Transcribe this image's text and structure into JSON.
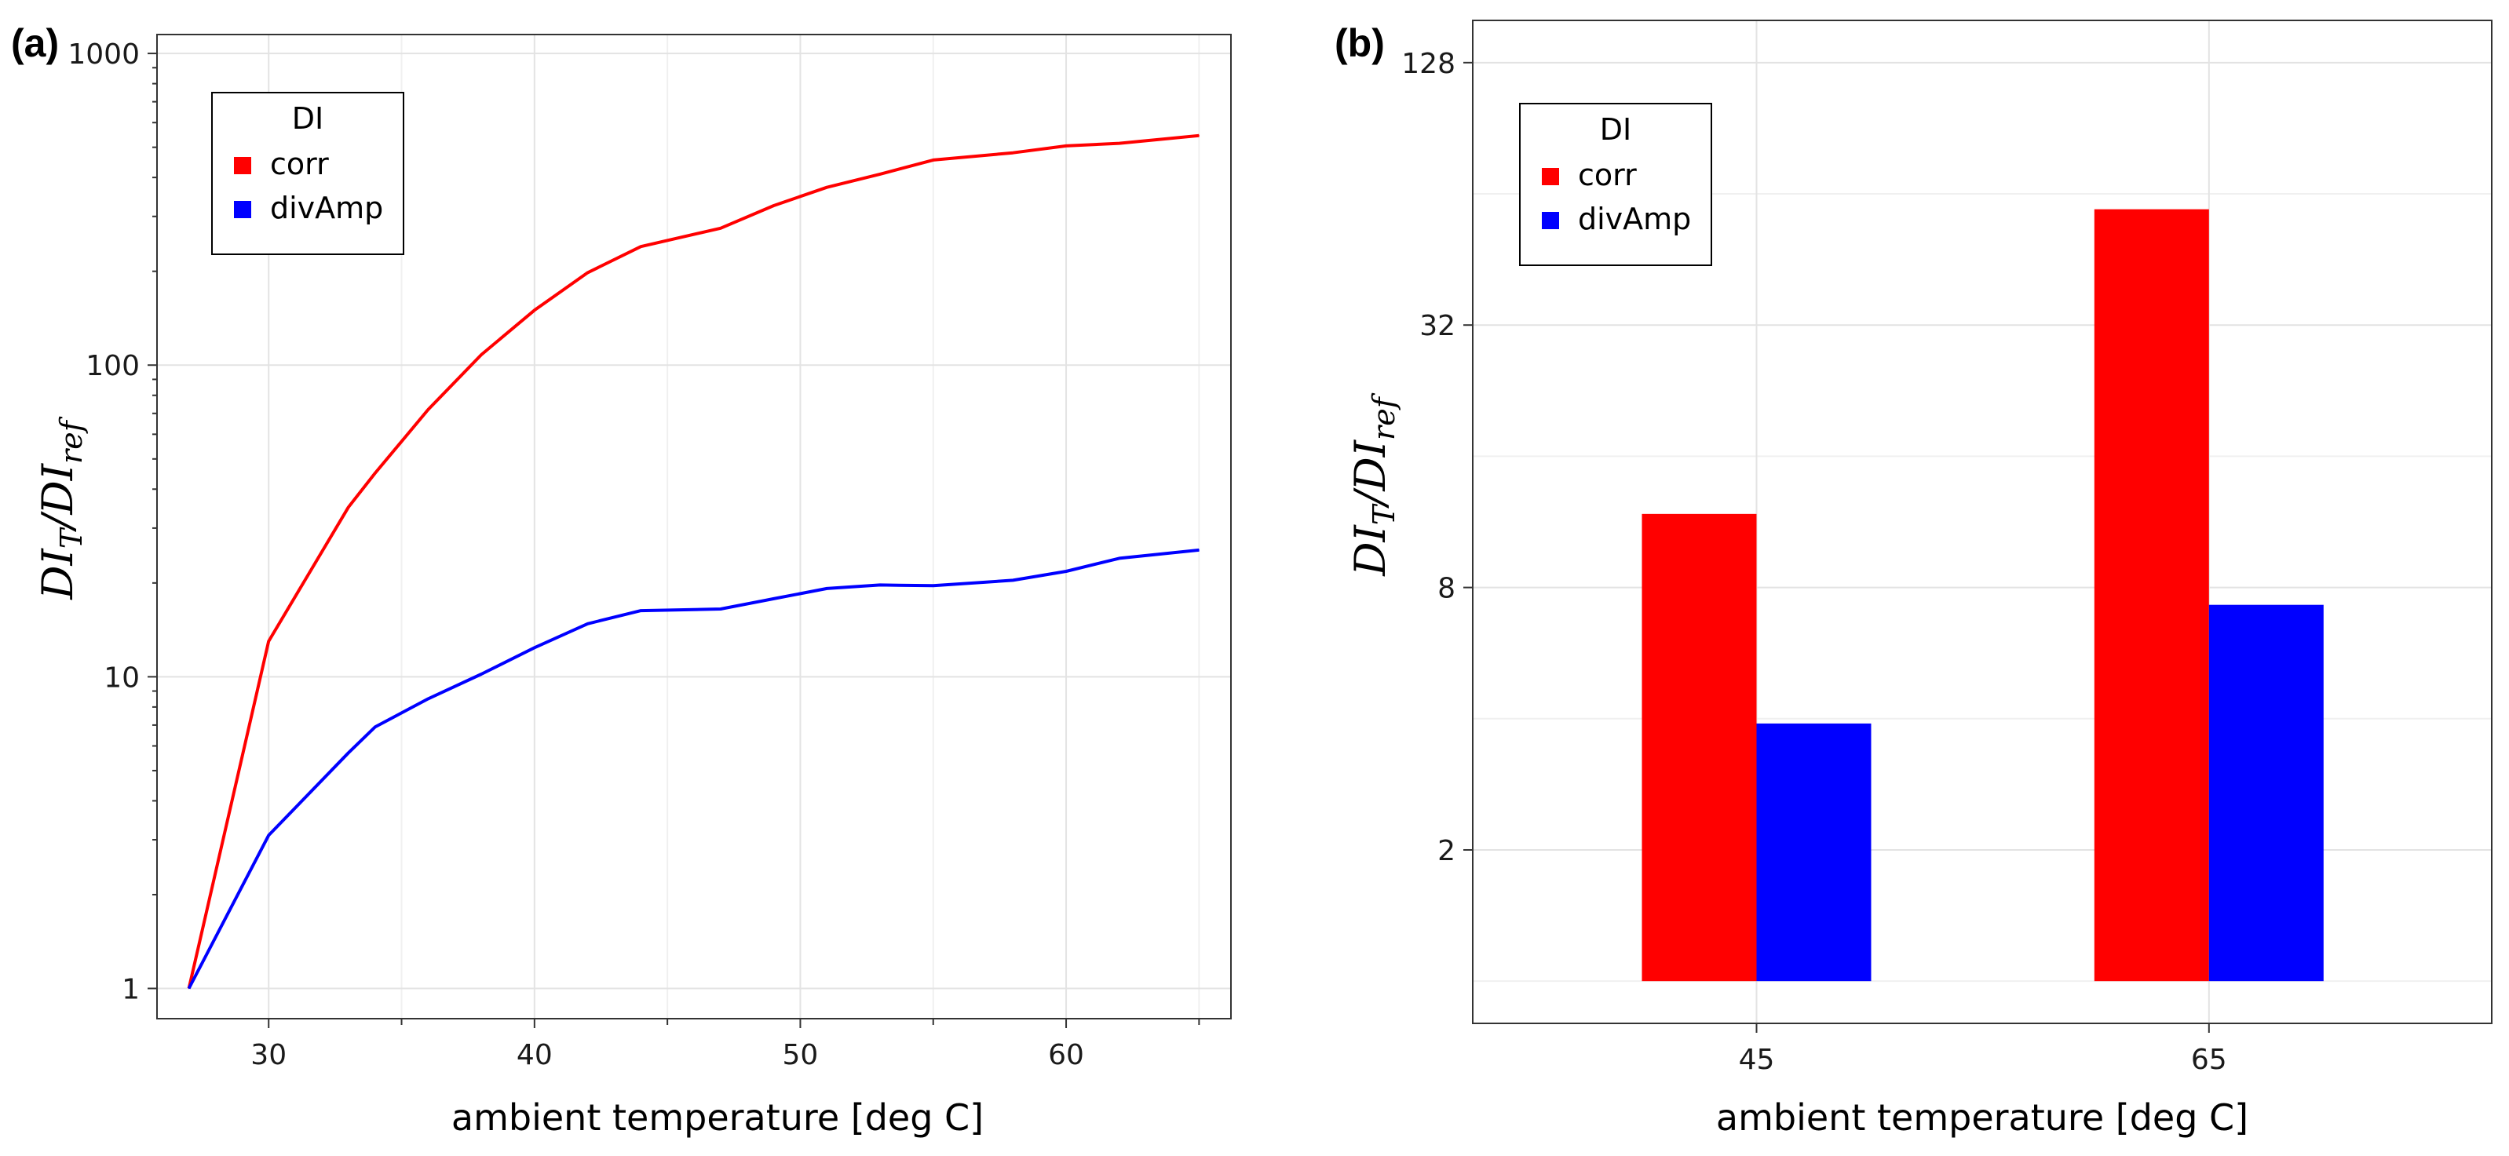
{
  "chart_data": [
    {
      "panel": "(a)",
      "type": "line",
      "xlabel": "ambient temperature [deg C]",
      "ylabel_main": "DI",
      "ylabel_sub_numerator": "T",
      "ylabel_sub_denominator": "ref",
      "yscale": "log10",
      "xlim": [
        25.8,
        66.2
      ],
      "ylim": [
        0.8,
        1150
      ],
      "x_ticks": [
        30,
        40,
        50,
        60
      ],
      "y_ticks": [
        1,
        10,
        100,
        1000
      ],
      "x_tick_labels": [
        "30",
        "40",
        "50",
        "60"
      ],
      "y_tick_labels": [
        "1",
        "10",
        "100",
        "1000"
      ],
      "grid": true,
      "legend": {
        "title": "DI",
        "position": "top-left",
        "items": [
          {
            "label": "corr",
            "color": "#ff0000"
          },
          {
            "label": "divAmp",
            "color": "#0000ff"
          }
        ]
      },
      "series": [
        {
          "name": "corr",
          "color": "#ff0000",
          "points": [
            [
              27,
              1
            ],
            [
              30,
              13
            ],
            [
              33,
              35
            ],
            [
              34,
              45
            ],
            [
              36,
              72
            ],
            [
              38,
              108
            ],
            [
              40,
              150
            ],
            [
              42,
              198
            ],
            [
              44,
              240
            ],
            [
              47,
              275
            ],
            [
              49,
              325
            ],
            [
              51,
              372
            ],
            [
              53,
              410
            ],
            [
              55,
              455
            ],
            [
              58,
              480
            ],
            [
              60,
              505
            ],
            [
              62,
              515
            ],
            [
              65,
              545
            ]
          ]
        },
        {
          "name": "divAmp",
          "color": "#0000ff",
          "points": [
            [
              27,
              1
            ],
            [
              30,
              3.1
            ],
            [
              33,
              5.7
            ],
            [
              34,
              6.9
            ],
            [
              36,
              8.5
            ],
            [
              38,
              10.2
            ],
            [
              40,
              12.4
            ],
            [
              42,
              14.8
            ],
            [
              44,
              16.3
            ],
            [
              47,
              16.5
            ],
            [
              49,
              17.8
            ],
            [
              51,
              19.2
            ],
            [
              53,
              19.7
            ],
            [
              55,
              19.6
            ],
            [
              58,
              20.4
            ],
            [
              60,
              21.8
            ],
            [
              62,
              24
            ],
            [
              65,
              25.5
            ]
          ]
        }
      ]
    },
    {
      "panel": "(b)",
      "type": "bar",
      "xlabel": "ambient temperature [deg C]",
      "ylabel_main": "DI",
      "ylabel_sub_numerator": "T",
      "ylabel_sub_denominator": "ref",
      "yscale": "log2",
      "ylim": [
        0.8,
        160
      ],
      "bar_base": 1,
      "y_ticks": [
        2,
        8,
        32,
        128
      ],
      "y_tick_labels": [
        "2",
        "8",
        "32",
        "128"
      ],
      "categories": [
        "45",
        "65"
      ],
      "grid": true,
      "legend": {
        "title": "DI",
        "position": "top-left",
        "items": [
          {
            "label": "corr",
            "color": "#ff0000"
          },
          {
            "label": "divAmp",
            "color": "#0000ff"
          }
        ]
      },
      "series": [
        {
          "name": "corr",
          "color": "#ff0000",
          "values": [
            11.8,
            59
          ]
        },
        {
          "name": "divAmp",
          "color": "#0000ff",
          "values": [
            3.9,
            7.3
          ]
        }
      ]
    }
  ]
}
